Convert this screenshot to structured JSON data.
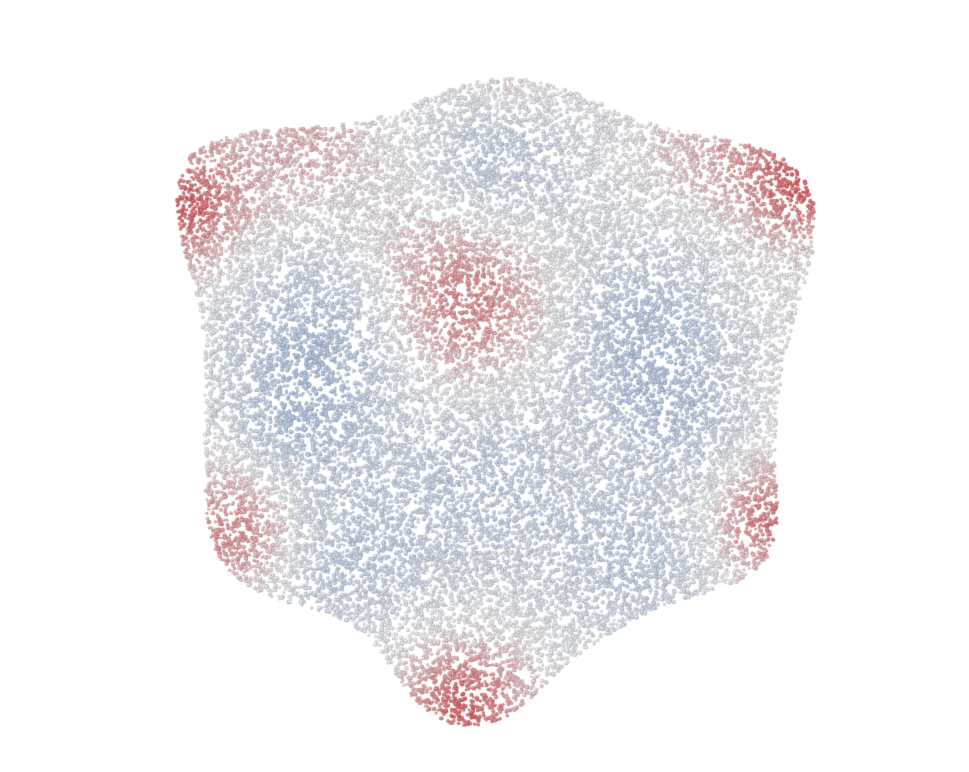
{
  "scene": {
    "subject": "point-cloud",
    "background_color": "#ffffff",
    "colormap": {
      "low_color": "#9aaed0",
      "mid_color": "#dcdde0",
      "high_color": "#c94a4e"
    }
  }
}
